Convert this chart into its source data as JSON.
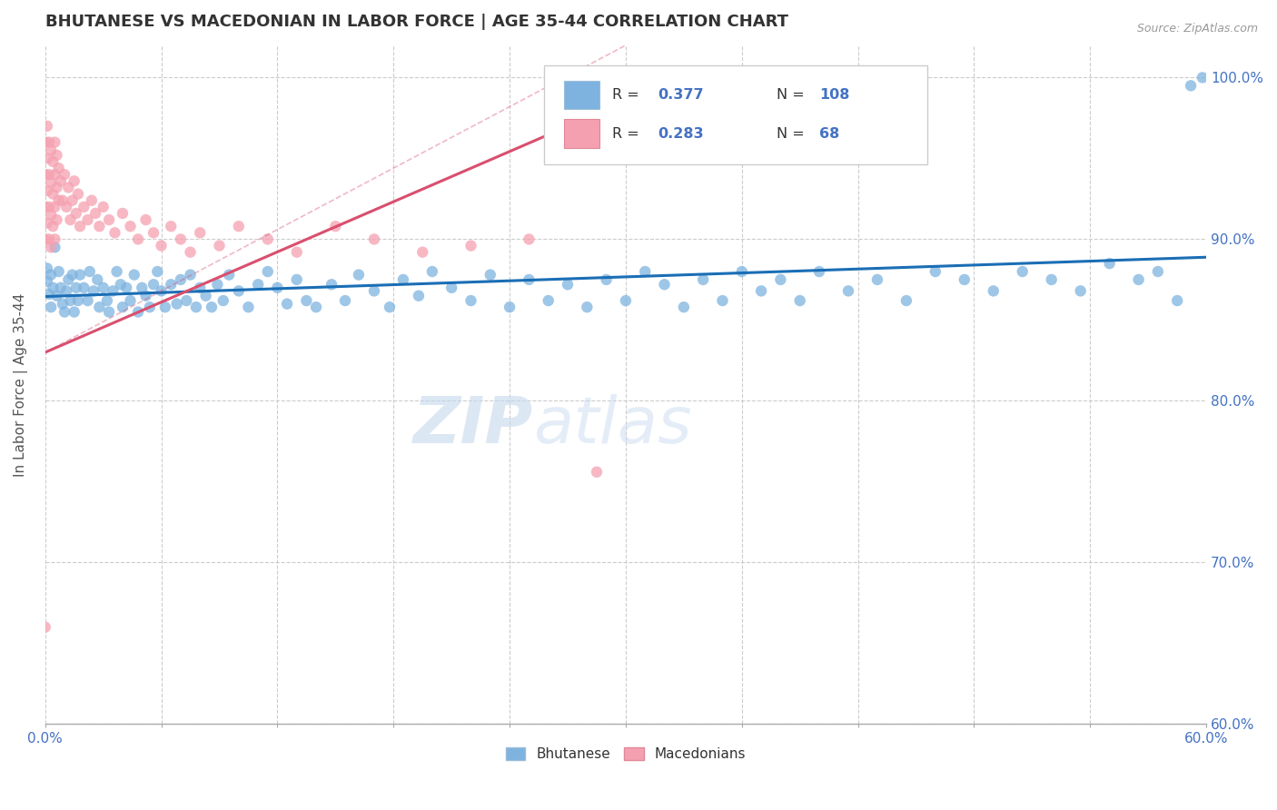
{
  "title": "BHUTANESE VS MACEDONIAN IN LABOR FORCE | AGE 35-44 CORRELATION CHART",
  "source_text": "Source: ZipAtlas.com",
  "ylabel": "In Labor Force | Age 35-44",
  "xlim": [
    0.0,
    0.6
  ],
  "ylim": [
    0.6,
    1.02
  ],
  "xtick_pos": [
    0.0,
    0.06,
    0.12,
    0.18,
    0.24,
    0.3,
    0.36,
    0.42,
    0.48,
    0.54,
    0.6
  ],
  "xtick_labels": [
    "0.0%",
    "",
    "",
    "",
    "",
    "",
    "",
    "",
    "",
    "",
    "60.0%"
  ],
  "ytick_labels": [
    "60.0%",
    "70.0%",
    "80.0%",
    "90.0%",
    "100.0%"
  ],
  "yticks": [
    0.6,
    0.7,
    0.8,
    0.9,
    1.0
  ],
  "blue_color": "#7eb3e0",
  "pink_color": "#f5a0b0",
  "blue_line_color": "#1a6eb5",
  "pink_line_color": "#d94f6e",
  "R_blue": 0.377,
  "N_blue": 108,
  "R_pink": 0.283,
  "N_pink": 68,
  "legend_blue": "Bhutanese",
  "legend_pink": "Macedonians",
  "watermark": "ZIPatlas",
  "blue_scatter_x": [
    0.001,
    0.001,
    0.002,
    0.003,
    0.003,
    0.004,
    0.005,
    0.006,
    0.007,
    0.008,
    0.009,
    0.01,
    0.011,
    0.012,
    0.013,
    0.014,
    0.015,
    0.016,
    0.017,
    0.018,
    0.02,
    0.022,
    0.023,
    0.025,
    0.027,
    0.028,
    0.03,
    0.032,
    0.033,
    0.035,
    0.037,
    0.039,
    0.04,
    0.042,
    0.044,
    0.046,
    0.048,
    0.05,
    0.052,
    0.054,
    0.056,
    0.058,
    0.06,
    0.062,
    0.065,
    0.068,
    0.07,
    0.073,
    0.075,
    0.078,
    0.08,
    0.083,
    0.086,
    0.089,
    0.092,
    0.095,
    0.1,
    0.105,
    0.11,
    0.115,
    0.12,
    0.125,
    0.13,
    0.135,
    0.14,
    0.148,
    0.155,
    0.162,
    0.17,
    0.178,
    0.185,
    0.193,
    0.2,
    0.21,
    0.22,
    0.23,
    0.24,
    0.25,
    0.26,
    0.27,
    0.28,
    0.29,
    0.3,
    0.31,
    0.32,
    0.33,
    0.34,
    0.35,
    0.36,
    0.37,
    0.38,
    0.39,
    0.4,
    0.415,
    0.43,
    0.445,
    0.46,
    0.475,
    0.49,
    0.505,
    0.52,
    0.535,
    0.55,
    0.565,
    0.575,
    0.585,
    0.592,
    0.598
  ],
  "blue_scatter_y": [
    0.882,
    0.874,
    0.866,
    0.858,
    0.878,
    0.87,
    0.895,
    0.865,
    0.88,
    0.87,
    0.86,
    0.855,
    0.868,
    0.875,
    0.862,
    0.878,
    0.855,
    0.87,
    0.862,
    0.878,
    0.87,
    0.862,
    0.88,
    0.868,
    0.875,
    0.858,
    0.87,
    0.862,
    0.855,
    0.868,
    0.88,
    0.872,
    0.858,
    0.87,
    0.862,
    0.878,
    0.855,
    0.87,
    0.865,
    0.858,
    0.872,
    0.88,
    0.868,
    0.858,
    0.872,
    0.86,
    0.875,
    0.862,
    0.878,
    0.858,
    0.87,
    0.865,
    0.858,
    0.872,
    0.862,
    0.878,
    0.868,
    0.858,
    0.872,
    0.88,
    0.87,
    0.86,
    0.875,
    0.862,
    0.858,
    0.872,
    0.862,
    0.878,
    0.868,
    0.858,
    0.875,
    0.865,
    0.88,
    0.87,
    0.862,
    0.878,
    0.858,
    0.875,
    0.862,
    0.872,
    0.858,
    0.875,
    0.862,
    0.88,
    0.872,
    0.858,
    0.875,
    0.862,
    0.88,
    0.868,
    0.875,
    0.862,
    0.88,
    0.868,
    0.875,
    0.862,
    0.88,
    0.875,
    0.868,
    0.88,
    0.875,
    0.868,
    0.885,
    0.875,
    0.88,
    0.862,
    0.995,
    1.0
  ],
  "pink_scatter_x": [
    0.0,
    0.0,
    0.0,
    0.0,
    0.0,
    0.001,
    0.001,
    0.001,
    0.001,
    0.002,
    0.002,
    0.002,
    0.002,
    0.003,
    0.003,
    0.003,
    0.003,
    0.004,
    0.004,
    0.004,
    0.005,
    0.005,
    0.005,
    0.005,
    0.006,
    0.006,
    0.006,
    0.007,
    0.007,
    0.008,
    0.009,
    0.01,
    0.011,
    0.012,
    0.013,
    0.014,
    0.015,
    0.016,
    0.017,
    0.018,
    0.02,
    0.022,
    0.024,
    0.026,
    0.028,
    0.03,
    0.033,
    0.036,
    0.04,
    0.044,
    0.048,
    0.052,
    0.056,
    0.06,
    0.065,
    0.07,
    0.075,
    0.08,
    0.09,
    0.1,
    0.115,
    0.13,
    0.15,
    0.17,
    0.195,
    0.22,
    0.25,
    0.285
  ],
  "pink_scatter_y": [
    0.96,
    0.94,
    0.92,
    0.9,
    0.66,
    0.97,
    0.95,
    0.93,
    0.91,
    0.96,
    0.94,
    0.92,
    0.9,
    0.955,
    0.935,
    0.915,
    0.895,
    0.948,
    0.928,
    0.908,
    0.96,
    0.94,
    0.92,
    0.9,
    0.952,
    0.932,
    0.912,
    0.944,
    0.924,
    0.936,
    0.924,
    0.94,
    0.92,
    0.932,
    0.912,
    0.924,
    0.936,
    0.916,
    0.928,
    0.908,
    0.92,
    0.912,
    0.924,
    0.916,
    0.908,
    0.92,
    0.912,
    0.904,
    0.916,
    0.908,
    0.9,
    0.912,
    0.904,
    0.896,
    0.908,
    0.9,
    0.892,
    0.904,
    0.896,
    0.908,
    0.9,
    0.892,
    0.908,
    0.9,
    0.892,
    0.896,
    0.9,
    0.756
  ]
}
